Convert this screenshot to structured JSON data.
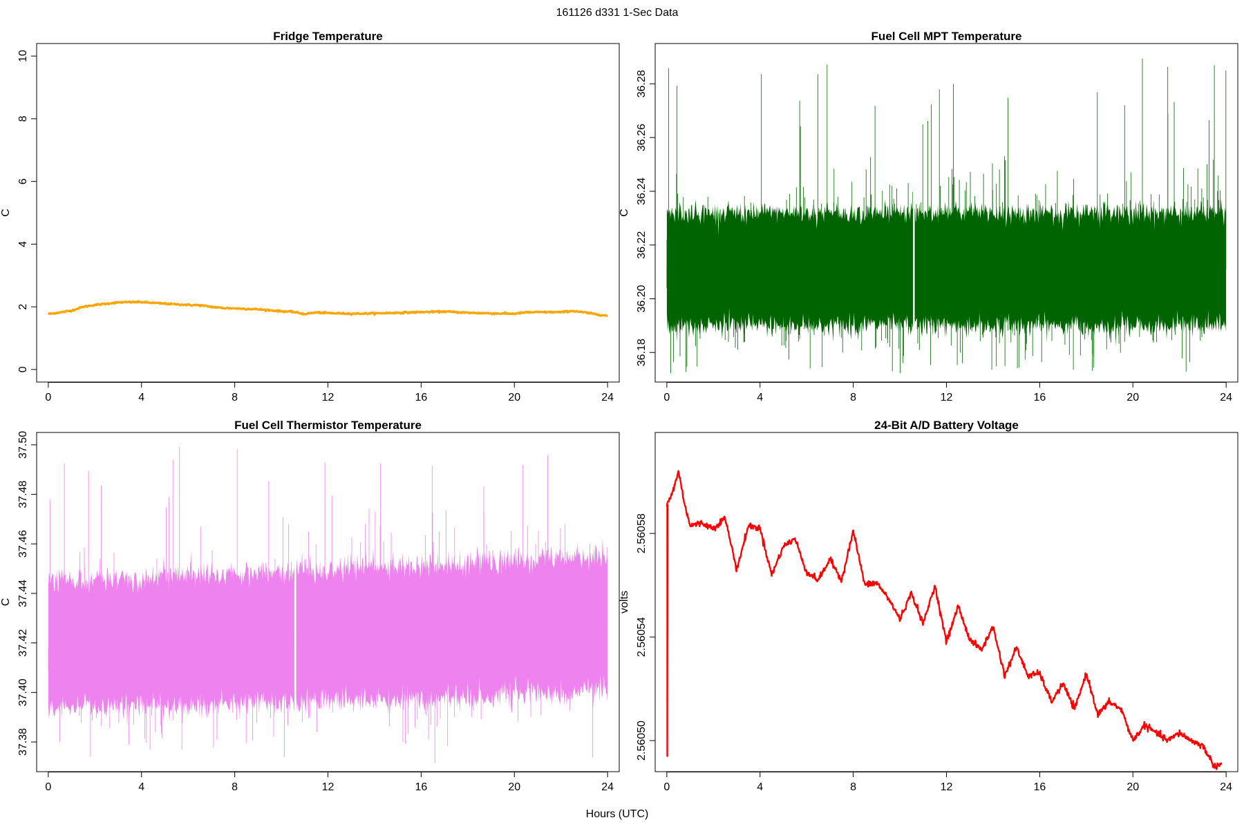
{
  "figure": {
    "title": "161126   d331   1-Sec Data",
    "xlabel": "Hours (UTC)"
  },
  "chart_data": [
    {
      "type": "line",
      "title": "Fridge Temperature",
      "ylabel": "C",
      "xlim": [
        -0.5,
        24.5
      ],
      "ylim": [
        -0.4,
        10.4
      ],
      "xticks": [
        0,
        4,
        8,
        12,
        16,
        20,
        24
      ],
      "yticks": [
        0,
        2,
        4,
        6,
        8,
        10
      ],
      "ytick_labels": [
        "0",
        "2",
        "4",
        "6",
        "8",
        "10"
      ],
      "color": "#ffa500",
      "style": "smooth",
      "x": [
        0,
        0.5,
        1,
        1.5,
        2,
        2.5,
        3,
        3.5,
        4,
        5,
        6,
        6.5,
        7,
        7.5,
        8,
        9,
        10,
        10.5,
        11,
        11.5,
        12,
        12.5,
        13,
        14,
        15,
        16,
        16.5,
        17,
        18,
        18.5,
        19,
        20,
        20.5,
        21,
        22,
        22.5,
        23,
        24
      ],
      "y": [
        1.77,
        1.82,
        1.88,
        2.0,
        2.06,
        2.1,
        2.14,
        2.15,
        2.15,
        2.1,
        2.06,
        2.05,
        2.0,
        1.96,
        1.95,
        1.92,
        1.86,
        1.84,
        1.77,
        1.82,
        1.8,
        1.79,
        1.78,
        1.79,
        1.81,
        1.83,
        1.84,
        1.85,
        1.81,
        1.8,
        1.79,
        1.78,
        1.82,
        1.83,
        1.83,
        1.87,
        1.82,
        1.71
      ]
    },
    {
      "type": "line",
      "title": "Fuel Cell MPT Temperature",
      "ylabel": "C",
      "xlim": [
        -0.5,
        24.5
      ],
      "ylim": [
        36.169,
        36.295
      ],
      "xticks": [
        0,
        4,
        8,
        12,
        16,
        20,
        24
      ],
      "yticks": [
        36.18,
        36.2,
        36.22,
        36.24,
        36.26,
        36.28
      ],
      "ytick_labels": [
        "36.18",
        "36.20",
        "36.22",
        "36.24",
        "36.26",
        "36.28"
      ],
      "color": "#006400",
      "style": "noise",
      "band_low": 36.19,
      "band_high": 36.232,
      "mean": 36.211,
      "spread": 0.013,
      "gap_x": 10.6,
      "min": 36.172,
      "max": 36.292
    },
    {
      "type": "line",
      "title": "Fuel Cell Thermistor Temperature",
      "ylabel": "C",
      "xlim": [
        -0.5,
        24.5
      ],
      "ylim": [
        37.368,
        37.505
      ],
      "xticks": [
        0,
        4,
        8,
        12,
        16,
        20,
        24
      ],
      "yticks": [
        37.38,
        37.4,
        37.42,
        37.44,
        37.46,
        37.48,
        37.5
      ],
      "ytick_labels": [
        "37.38",
        "37.40",
        "37.42",
        "37.44",
        "37.46",
        "37.48",
        "37.50"
      ],
      "color": "#ee82ee",
      "style": "noise",
      "band_low_start": 37.393,
      "band_low_end": 37.4,
      "band_high_start": 37.445,
      "band_high_end": 37.455,
      "mean_start": 37.418,
      "mean_end": 37.428,
      "spread": 0.014,
      "gap_x": 10.6,
      "min": 37.37,
      "max": 37.502
    },
    {
      "type": "line",
      "title": "24-Bit A/D Battery Voltage",
      "ylabel": "volts",
      "xlim": [
        -0.5,
        24.5
      ],
      "ylim": [
        2.560488,
        2.560619
      ],
      "xticks": [
        0,
        4,
        8,
        12,
        16,
        20,
        24
      ],
      "yticks": [
        2.5605,
        2.56054,
        2.56058
      ],
      "ytick_labels": [
        "2.56050",
        "2.56054",
        "2.56058"
      ],
      "color": "#ff0000",
      "style": "wavy",
      "spike": {
        "x": 0.02,
        "y": 2.560494
      },
      "x": [
        0,
        0.25,
        0.5,
        0.75,
        1,
        1.5,
        2,
        2.5,
        3,
        3.5,
        4,
        4.5,
        5,
        5.5,
        6,
        6.5,
        7,
        7.5,
        8,
        8.5,
        9,
        9.5,
        10,
        10.5,
        11,
        11.5,
        12,
        12.5,
        13,
        13.5,
        14,
        14.5,
        15,
        15.5,
        16,
        16.5,
        17,
        17.5,
        18,
        18.5,
        19,
        19.5,
        20,
        20.5,
        21,
        21.5,
        22,
        22.5,
        23,
        23.5,
        23.8
      ],
      "y": [
        2.560591,
        2.560596,
        2.560604,
        2.560592,
        2.560583,
        2.560584,
        2.560582,
        2.560586,
        2.560566,
        2.560583,
        2.560582,
        2.560564,
        2.560575,
        2.560578,
        2.560565,
        2.560562,
        2.56057,
        2.560562,
        2.560581,
        2.56056,
        2.560561,
        2.560555,
        2.560547,
        2.560557,
        2.560545,
        2.56056,
        2.560538,
        2.560552,
        2.560539,
        2.560535,
        2.560544,
        2.560525,
        2.560536,
        2.560525,
        2.560526,
        2.560515,
        2.560522,
        2.560512,
        2.560526,
        2.56051,
        2.560515,
        2.560512,
        2.5605,
        2.560506,
        2.560503,
        2.5605,
        2.560503,
        2.5605,
        2.560498,
        2.56049,
        2.560491
      ]
    }
  ]
}
